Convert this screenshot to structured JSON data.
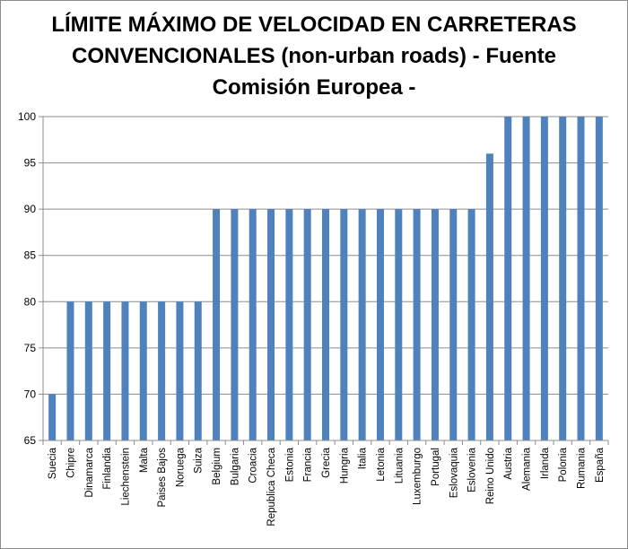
{
  "chart_data": {
    "type": "bar",
    "title_lines": [
      "LÍMITE MÁXIMO DE VELOCIDAD EN CARRETERAS",
      "CONVENCIONALES (non-urban roads) - Fuente",
      "Comisión Europea -"
    ],
    "categories": [
      "Suecia",
      "Chipre",
      "Dinamarca",
      "Finlandia",
      "Liechenstein",
      "Malta",
      "Paises Bajos",
      "Noruega",
      "Suiza",
      "Belgium",
      "Bulgaria",
      "Croacia",
      "Republica Checa",
      "Estonia",
      "Francia",
      "Grecia",
      "Hungria",
      "Italia",
      "Letonia",
      "Lituania",
      "Luxemburgo",
      "Portugal",
      "Eslovaquia",
      "Eslovenia",
      "Reino Unido",
      "Austria",
      "Alemania",
      "Irlanda",
      "Polonia",
      "Rumania",
      "España"
    ],
    "values": [
      70,
      80,
      80,
      80,
      80,
      80,
      80,
      80,
      80,
      90,
      90,
      90,
      90,
      90,
      90,
      90,
      90,
      90,
      90,
      90,
      90,
      90,
      90,
      90,
      96,
      100,
      100,
      100,
      100,
      100,
      100
    ],
    "ylim": [
      65,
      100
    ],
    "yticks": [
      "65",
      "70",
      "75",
      "80",
      "85",
      "90",
      "95",
      "100"
    ],
    "grid": true,
    "legend": "none",
    "bar_color": "#4f81bd",
    "grid_color": "#8c8c8c"
  }
}
